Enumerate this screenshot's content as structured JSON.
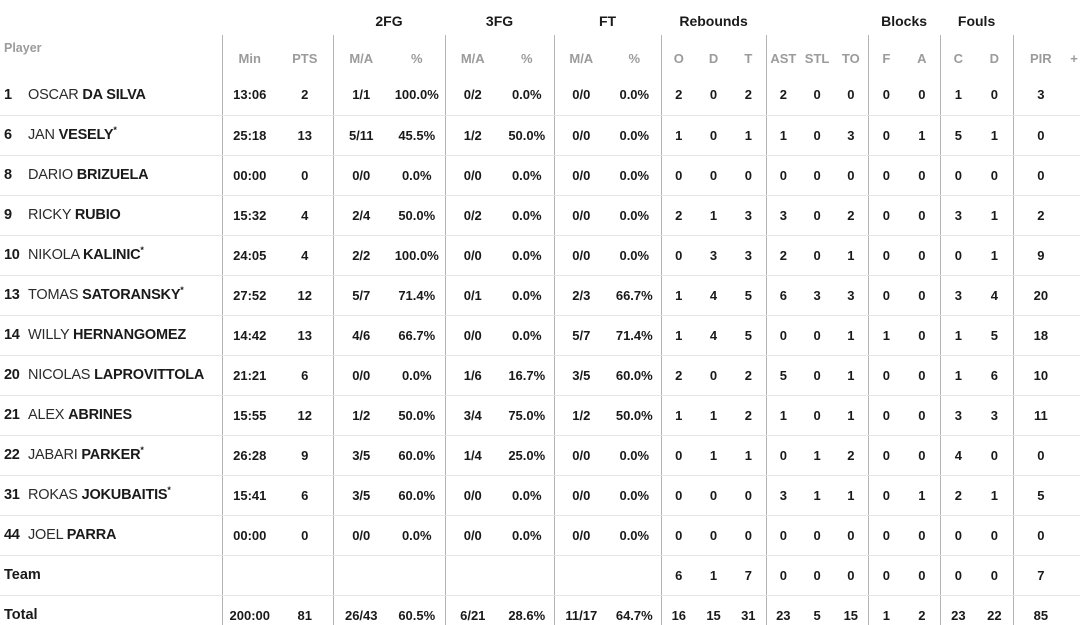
{
  "colors": {
    "background": "#ffffff",
    "text_dark": "#1a1a1a",
    "text_gray": "#9b9b9b",
    "vertical_line": "#b3b3b3",
    "horizontal_line": "#e5e5e5"
  },
  "starter_mark": "*",
  "header": {
    "player_label": "Player",
    "groups": {
      "fg2": "2FG",
      "fg3": "3FG",
      "ft": "FT",
      "rebounds": "Rebounds",
      "blocks": "Blocks",
      "fouls": "Fouls"
    },
    "columns": {
      "min": "Min",
      "pts": "PTS",
      "fg2_ma": "M/A",
      "fg2_pct": "%",
      "fg3_ma": "M/A",
      "fg3_pct": "%",
      "ft_ma": "M/A",
      "ft_pct": "%",
      "reb_o": "O",
      "reb_d": "D",
      "reb_t": "T",
      "ast": "AST",
      "stl": "STL",
      "to": "TO",
      "blk_f": "F",
      "blk_a": "A",
      "foul_c": "C",
      "foul_d": "D",
      "pir": "PIR",
      "plus": "+"
    }
  },
  "players": [
    {
      "number": "1",
      "first": "OSCAR",
      "last": "DA SILVA",
      "starter": false,
      "min": "13:06",
      "pts": "2",
      "fg2_ma": "1/1",
      "fg2_pct": "100.0%",
      "fg3_ma": "0/2",
      "fg3_pct": "0.0%",
      "ft_ma": "0/0",
      "ft_pct": "0.0%",
      "reb_o": "2",
      "reb_d": "0",
      "reb_t": "2",
      "ast": "2",
      "stl": "0",
      "to": "0",
      "blk_f": "0",
      "blk_a": "0",
      "foul_c": "1",
      "foul_d": "0",
      "pir": "3",
      "plus": ""
    },
    {
      "number": "6",
      "first": "JAN",
      "last": "VESELY",
      "starter": true,
      "min": "25:18",
      "pts": "13",
      "fg2_ma": "5/11",
      "fg2_pct": "45.5%",
      "fg3_ma": "1/2",
      "fg3_pct": "50.0%",
      "ft_ma": "0/0",
      "ft_pct": "0.0%",
      "reb_o": "1",
      "reb_d": "0",
      "reb_t": "1",
      "ast": "1",
      "stl": "0",
      "to": "3",
      "blk_f": "0",
      "blk_a": "1",
      "foul_c": "5",
      "foul_d": "1",
      "pir": "0",
      "plus": ""
    },
    {
      "number": "8",
      "first": "DARIO",
      "last": "BRIZUELA",
      "starter": false,
      "min": "00:00",
      "pts": "0",
      "fg2_ma": "0/0",
      "fg2_pct": "0.0%",
      "fg3_ma": "0/0",
      "fg3_pct": "0.0%",
      "ft_ma": "0/0",
      "ft_pct": "0.0%",
      "reb_o": "0",
      "reb_d": "0",
      "reb_t": "0",
      "ast": "0",
      "stl": "0",
      "to": "0",
      "blk_f": "0",
      "blk_a": "0",
      "foul_c": "0",
      "foul_d": "0",
      "pir": "0",
      "plus": ""
    },
    {
      "number": "9",
      "first": "RICKY",
      "last": "RUBIO",
      "starter": false,
      "min": "15:32",
      "pts": "4",
      "fg2_ma": "2/4",
      "fg2_pct": "50.0%",
      "fg3_ma": "0/2",
      "fg3_pct": "0.0%",
      "ft_ma": "0/0",
      "ft_pct": "0.0%",
      "reb_o": "2",
      "reb_d": "1",
      "reb_t": "3",
      "ast": "3",
      "stl": "0",
      "to": "2",
      "blk_f": "0",
      "blk_a": "0",
      "foul_c": "3",
      "foul_d": "1",
      "pir": "2",
      "plus": ""
    },
    {
      "number": "10",
      "first": "NIKOLA",
      "last": "KALINIC",
      "starter": true,
      "min": "24:05",
      "pts": "4",
      "fg2_ma": "2/2",
      "fg2_pct": "100.0%",
      "fg3_ma": "0/0",
      "fg3_pct": "0.0%",
      "ft_ma": "0/0",
      "ft_pct": "0.0%",
      "reb_o": "0",
      "reb_d": "3",
      "reb_t": "3",
      "ast": "2",
      "stl": "0",
      "to": "1",
      "blk_f": "0",
      "blk_a": "0",
      "foul_c": "0",
      "foul_d": "1",
      "pir": "9",
      "plus": ""
    },
    {
      "number": "13",
      "first": "TOMAS",
      "last": "SATORANSKY",
      "starter": true,
      "min": "27:52",
      "pts": "12",
      "fg2_ma": "5/7",
      "fg2_pct": "71.4%",
      "fg3_ma": "0/1",
      "fg3_pct": "0.0%",
      "ft_ma": "2/3",
      "ft_pct": "66.7%",
      "reb_o": "1",
      "reb_d": "4",
      "reb_t": "5",
      "ast": "6",
      "stl": "3",
      "to": "3",
      "blk_f": "0",
      "blk_a": "0",
      "foul_c": "3",
      "foul_d": "4",
      "pir": "20",
      "plus": ""
    },
    {
      "number": "14",
      "first": "WILLY",
      "last": "HERNANGOMEZ",
      "starter": false,
      "min": "14:42",
      "pts": "13",
      "fg2_ma": "4/6",
      "fg2_pct": "66.7%",
      "fg3_ma": "0/0",
      "fg3_pct": "0.0%",
      "ft_ma": "5/7",
      "ft_pct": "71.4%",
      "reb_o": "1",
      "reb_d": "4",
      "reb_t": "5",
      "ast": "0",
      "stl": "0",
      "to": "1",
      "blk_f": "1",
      "blk_a": "0",
      "foul_c": "1",
      "foul_d": "5",
      "pir": "18",
      "plus": ""
    },
    {
      "number": "20",
      "first": "NICOLAS",
      "last": "LAPROVITTOLA",
      "starter": false,
      "min": "21:21",
      "pts": "6",
      "fg2_ma": "0/0",
      "fg2_pct": "0.0%",
      "fg3_ma": "1/6",
      "fg3_pct": "16.7%",
      "ft_ma": "3/5",
      "ft_pct": "60.0%",
      "reb_o": "2",
      "reb_d": "0",
      "reb_t": "2",
      "ast": "5",
      "stl": "0",
      "to": "1",
      "blk_f": "0",
      "blk_a": "0",
      "foul_c": "1",
      "foul_d": "6",
      "pir": "10",
      "plus": ""
    },
    {
      "number": "21",
      "first": "ALEX",
      "last": "ABRINES",
      "starter": false,
      "min": "15:55",
      "pts": "12",
      "fg2_ma": "1/2",
      "fg2_pct": "50.0%",
      "fg3_ma": "3/4",
      "fg3_pct": "75.0%",
      "ft_ma": "1/2",
      "ft_pct": "50.0%",
      "reb_o": "1",
      "reb_d": "1",
      "reb_t": "2",
      "ast": "1",
      "stl": "0",
      "to": "1",
      "blk_f": "0",
      "blk_a": "0",
      "foul_c": "3",
      "foul_d": "3",
      "pir": "11",
      "plus": ""
    },
    {
      "number": "22",
      "first": "JABARI",
      "last": "PARKER",
      "starter": true,
      "min": "26:28",
      "pts": "9",
      "fg2_ma": "3/5",
      "fg2_pct": "60.0%",
      "fg3_ma": "1/4",
      "fg3_pct": "25.0%",
      "ft_ma": "0/0",
      "ft_pct": "0.0%",
      "reb_o": "0",
      "reb_d": "1",
      "reb_t": "1",
      "ast": "0",
      "stl": "1",
      "to": "2",
      "blk_f": "0",
      "blk_a": "0",
      "foul_c": "4",
      "foul_d": "0",
      "pir": "0",
      "plus": ""
    },
    {
      "number": "31",
      "first": "ROKAS",
      "last": "JOKUBAITIS",
      "starter": true,
      "min": "15:41",
      "pts": "6",
      "fg2_ma": "3/5",
      "fg2_pct": "60.0%",
      "fg3_ma": "0/0",
      "fg3_pct": "0.0%",
      "ft_ma": "0/0",
      "ft_pct": "0.0%",
      "reb_o": "0",
      "reb_d": "0",
      "reb_t": "0",
      "ast": "3",
      "stl": "1",
      "to": "1",
      "blk_f": "0",
      "blk_a": "1",
      "foul_c": "2",
      "foul_d": "1",
      "pir": "5",
      "plus": ""
    },
    {
      "number": "44",
      "first": "JOEL",
      "last": "PARRA",
      "starter": false,
      "min": "00:00",
      "pts": "0",
      "fg2_ma": "0/0",
      "fg2_pct": "0.0%",
      "fg3_ma": "0/0",
      "fg3_pct": "0.0%",
      "ft_ma": "0/0",
      "ft_pct": "0.0%",
      "reb_o": "0",
      "reb_d": "0",
      "reb_t": "0",
      "ast": "0",
      "stl": "0",
      "to": "0",
      "blk_f": "0",
      "blk_a": "0",
      "foul_c": "0",
      "foul_d": "0",
      "pir": "0",
      "plus": ""
    }
  ],
  "team_row": {
    "label": "Team",
    "min": "",
    "pts": "",
    "fg2_ma": "",
    "fg2_pct": "",
    "fg3_ma": "",
    "fg3_pct": "",
    "ft_ma": "",
    "ft_pct": "",
    "reb_o": "6",
    "reb_d": "1",
    "reb_t": "7",
    "ast": "0",
    "stl": "0",
    "to": "0",
    "blk_f": "0",
    "blk_a": "0",
    "foul_c": "0",
    "foul_d": "0",
    "pir": "7",
    "plus": ""
  },
  "total_row": {
    "label": "Total",
    "min": "200:00",
    "pts": "81",
    "fg2_ma": "26/43",
    "fg2_pct": "60.5%",
    "fg3_ma": "6/21",
    "fg3_pct": "28.6%",
    "ft_ma": "11/17",
    "ft_pct": "64.7%",
    "reb_o": "16",
    "reb_d": "15",
    "reb_t": "31",
    "ast": "23",
    "stl": "5",
    "to": "15",
    "blk_f": "1",
    "blk_a": "2",
    "foul_c": "23",
    "foul_d": "22",
    "pir": "85",
    "plus": ""
  }
}
